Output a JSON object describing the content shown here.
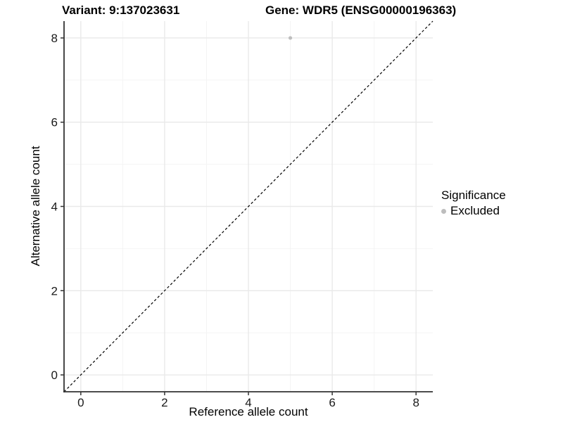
{
  "chart_data": {
    "type": "scatter",
    "titles": {
      "left": "Variant: 9:137023631",
      "right": "Gene: WDR5 (ENSG00000196363)"
    },
    "xlabel": "Reference allele count",
    "ylabel": "Alternative allele count",
    "xlim": [
      -0.4,
      8.4
    ],
    "ylim": [
      -0.4,
      8.4
    ],
    "xticks": [
      0,
      2,
      4,
      6,
      8
    ],
    "yticks": [
      0,
      2,
      4,
      6,
      8
    ],
    "minor_xticks": [
      1,
      3,
      5,
      7
    ],
    "minor_yticks": [
      1,
      3,
      5,
      7
    ],
    "grid": true,
    "identity_line": {
      "style": "dashed",
      "slope": 1,
      "intercept": 0,
      "color": "#000000"
    },
    "series": [
      {
        "name": "Excluded",
        "color": "#bdbdbd",
        "points": [
          {
            "x": 5,
            "y": 8
          }
        ]
      }
    ],
    "legend": {
      "title": "Significance",
      "position": "right",
      "items": [
        {
          "label": "Excluded",
          "color": "#bdbdbd"
        }
      ]
    },
    "colors": {
      "background": "#ffffff",
      "grid_major": "#e9e9e9",
      "grid_minor": "#f4f4f4",
      "axis_line": "#333333",
      "tick_label": "#1a1a1a"
    }
  }
}
